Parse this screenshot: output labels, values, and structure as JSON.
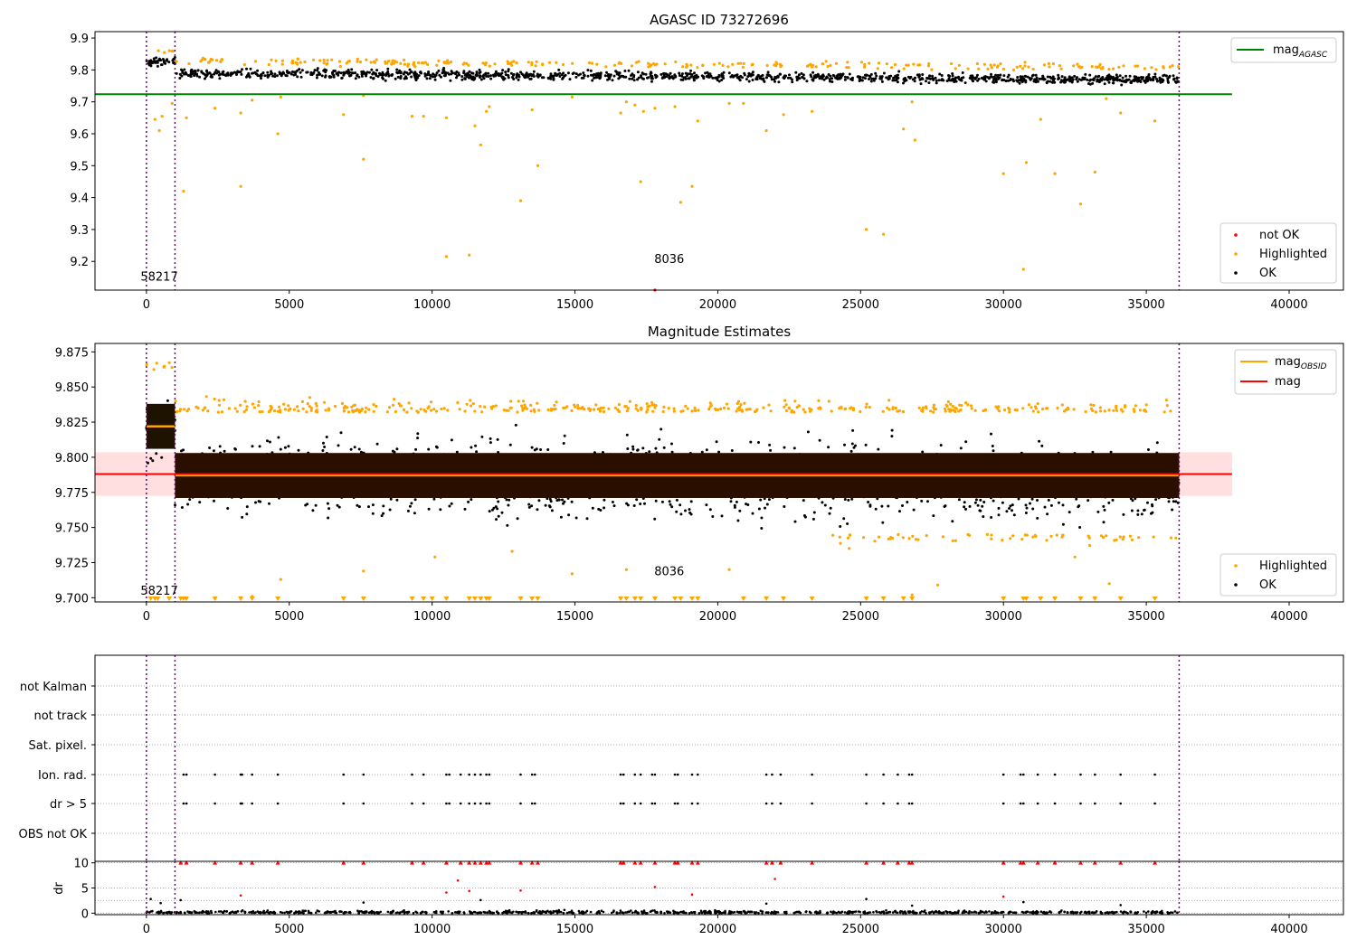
{
  "colors": {
    "ok": "#000000",
    "highlighted": "#ffa500",
    "not_ok": "#ff0000",
    "agasc_line": "#008000",
    "obs_line": "#ffa500",
    "mag_line": "#ff0000",
    "band": "#ffc0c0",
    "boundary": "#800080",
    "grid": "#b0b0b0"
  },
  "chart_data": [
    {
      "type": "scatter",
      "title": "AGASC ID 73272696",
      "xlabel": "",
      "ylabel": "",
      "xlim": [
        -1800,
        41900
      ],
      "ylim": [
        9.11,
        9.92
      ],
      "xticks": [
        0,
        5000,
        10000,
        15000,
        20000,
        25000,
        30000,
        35000,
        40000
      ],
      "xtick_labels": [
        "0",
        "5000",
        "10000",
        "15000",
        "20000",
        "25000",
        "30000",
        "35000",
        "40000"
      ],
      "yticks": [
        9.2,
        9.3,
        9.4,
        9.5,
        9.6,
        9.7,
        9.8,
        9.9
      ],
      "ytick_labels": [
        "9.2",
        "9.3",
        "9.4",
        "9.5",
        "9.6",
        "9.7",
        "9.8",
        "9.9"
      ],
      "lines": [
        {
          "name": "mag",
          "subscript": "AGASC",
          "color": "#008000",
          "y": 9.724,
          "x": [
            -1800,
            38000
          ]
        }
      ],
      "obs_boundaries": [
        0,
        1000,
        36150
      ],
      "obs_labels": [
        {
          "text": "58217",
          "x": 450,
          "y": 9.14
        },
        {
          "text": "8036",
          "x": 18300,
          "y": 9.195
        }
      ],
      "ok_band": {
        "x": [
          0,
          36150
        ],
        "y_center": 9.79,
        "y_halfwidth": 0.025
      },
      "ok_band_early": {
        "x": [
          0,
          1000
        ],
        "y_center": 9.825,
        "y_halfwidth": 0.02
      },
      "highlighted_points": [
        {
          "x": 300,
          "y": 9.645
        },
        {
          "x": 450,
          "y": 9.61
        },
        {
          "x": 550,
          "y": 9.655
        },
        {
          "x": 900,
          "y": 9.695
        },
        {
          "x": 1300,
          "y": 9.42
        },
        {
          "x": 1400,
          "y": 9.65
        },
        {
          "x": 2400,
          "y": 9.68
        },
        {
          "x": 3300,
          "y": 9.435
        },
        {
          "x": 3300,
          "y": 9.665
        },
        {
          "x": 3700,
          "y": 9.705
        },
        {
          "x": 4600,
          "y": 9.6
        },
        {
          "x": 4700,
          "y": 9.715
        },
        {
          "x": 6900,
          "y": 9.66
        },
        {
          "x": 7600,
          "y": 9.52
        },
        {
          "x": 7600,
          "y": 9.72
        },
        {
          "x": 9300,
          "y": 9.655
        },
        {
          "x": 9700,
          "y": 9.655
        },
        {
          "x": 10500,
          "y": 9.215
        },
        {
          "x": 10500,
          "y": 9.65
        },
        {
          "x": 11300,
          "y": 9.22
        },
        {
          "x": 11500,
          "y": 9.625
        },
        {
          "x": 11700,
          "y": 9.565
        },
        {
          "x": 11900,
          "y": 9.67
        },
        {
          "x": 12000,
          "y": 9.685
        },
        {
          "x": 13100,
          "y": 9.39
        },
        {
          "x": 13500,
          "y": 9.675
        },
        {
          "x": 13700,
          "y": 9.5
        },
        {
          "x": 14900,
          "y": 9.715
        },
        {
          "x": 16600,
          "y": 9.665
        },
        {
          "x": 16800,
          "y": 9.7
        },
        {
          "x": 17100,
          "y": 9.69
        },
        {
          "x": 17300,
          "y": 9.45
        },
        {
          "x": 17400,
          "y": 9.67
        },
        {
          "x": 17800,
          "y": 9.68
        },
        {
          "x": 18500,
          "y": 9.685
        },
        {
          "x": 18700,
          "y": 9.385
        },
        {
          "x": 19100,
          "y": 9.435
        },
        {
          "x": 19300,
          "y": 9.64
        },
        {
          "x": 20400,
          "y": 9.695
        },
        {
          "x": 20900,
          "y": 9.695
        },
        {
          "x": 21700,
          "y": 9.61
        },
        {
          "x": 22300,
          "y": 9.66
        },
        {
          "x": 23300,
          "y": 9.67
        },
        {
          "x": 25200,
          "y": 9.3
        },
        {
          "x": 25800,
          "y": 9.285
        },
        {
          "x": 26500,
          "y": 9.615
        },
        {
          "x": 26800,
          "y": 9.7
        },
        {
          "x": 26900,
          "y": 9.58
        },
        {
          "x": 30000,
          "y": 9.475
        },
        {
          "x": 30700,
          "y": 9.175
        },
        {
          "x": 30800,
          "y": 9.51
        },
        {
          "x": 31300,
          "y": 9.645
        },
        {
          "x": 31800,
          "y": 9.475
        },
        {
          "x": 32700,
          "y": 9.38
        },
        {
          "x": 33200,
          "y": 9.48
        },
        {
          "x": 33600,
          "y": 9.71
        },
        {
          "x": 34100,
          "y": 9.665
        },
        {
          "x": 35300,
          "y": 9.64
        }
      ],
      "not_ok_points": [
        {
          "x": 17800,
          "y": 9.11
        }
      ],
      "legend": {
        "upper_right": [
          {
            "label": "mag",
            "subscript": "AGASC",
            "kind": "line",
            "color": "#008000"
          }
        ],
        "lower_right": [
          {
            "label": "not OK",
            "kind": "marker",
            "color": "#ff0000"
          },
          {
            "label": "Highlighted",
            "kind": "marker",
            "color": "#ffa500"
          },
          {
            "label": "OK",
            "kind": "marker",
            "color": "#000000"
          }
        ]
      }
    },
    {
      "type": "scatter",
      "title": "Magnitude Estimates",
      "xlabel": "",
      "ylabel": "",
      "xlim": [
        -1800,
        41900
      ],
      "ylim": [
        9.697,
        9.881
      ],
      "xticks": [
        0,
        5000,
        10000,
        15000,
        20000,
        25000,
        30000,
        35000,
        40000
      ],
      "xtick_labels": [
        "0",
        "5000",
        "10000",
        "15000",
        "20000",
        "25000",
        "30000",
        "35000",
        "40000"
      ],
      "yticks": [
        9.7,
        9.725,
        9.75,
        9.775,
        9.8,
        9.825,
        9.85,
        9.875
      ],
      "ytick_labels": [
        "9.700",
        "9.725",
        "9.750",
        "9.775",
        "9.800",
        "9.825",
        "9.850",
        "9.875"
      ],
      "mag": {
        "value": 9.788,
        "sigma": 0.0155,
        "x": [
          -1800,
          38000
        ]
      },
      "mag_obsid": [
        {
          "x": [
            0,
            1000
          ],
          "y": 9.822
        },
        {
          "x": 1000,
          "x_end": 36150,
          "y": 9.787
        }
      ],
      "obs_boundaries": [
        0,
        1000,
        36150
      ],
      "obs_labels": [
        {
          "text": "58217",
          "x": 450,
          "y": 9.702
        },
        {
          "text": "8036",
          "x": 18300,
          "y": 9.716
        }
      ],
      "ok_band": {
        "x": [
          1000,
          36150
        ],
        "y_center": 9.787,
        "y_halfwidth": 0.016
      },
      "ok_band_early": {
        "x": [
          0,
          1000
        ],
        "y_center": 9.822,
        "y_halfwidth": 0.013
      },
      "clipped_marker_xs": [
        150,
        300,
        400,
        800,
        1200,
        1300,
        1400,
        2400,
        3300,
        3700,
        4600,
        6900,
        7600,
        9300,
        9700,
        10000,
        10500,
        11300,
        11500,
        11700,
        11900,
        12000,
        13100,
        13500,
        13700,
        16600,
        16800,
        17100,
        17300,
        17800,
        18500,
        18700,
        19100,
        19300,
        20900,
        21700,
        22300,
        23300,
        25200,
        25800,
        26500,
        26800,
        30000,
        30700,
        30800,
        31300,
        31800,
        32700,
        33200,
        34100,
        35300
      ],
      "highlighted_points": [
        {
          "x": 4700,
          "y": 9.713
        },
        {
          "x": 7600,
          "y": 9.719
        },
        {
          "x": 10100,
          "y": 9.729
        },
        {
          "x": 12800,
          "y": 9.733
        },
        {
          "x": 14900,
          "y": 9.717
        },
        {
          "x": 16800,
          "y": 9.72
        },
        {
          "x": 20400,
          "y": 9.72
        },
        {
          "x": 24600,
          "y": 9.735
        },
        {
          "x": 26800,
          "y": 9.702
        },
        {
          "x": 27700,
          "y": 9.709
        },
        {
          "x": 32500,
          "y": 9.729
        },
        {
          "x": 33700,
          "y": 9.71
        },
        {
          "x": 3700,
          "y": 9.701
        }
      ],
      "legend": {
        "upper_right": [
          {
            "label": "mag",
            "subscript": "OBSID",
            "kind": "line",
            "color": "#ffa500"
          },
          {
            "label": "mag",
            "kind": "line",
            "color": "#ff0000"
          }
        ],
        "lower_right": [
          {
            "label": "Highlighted",
            "kind": "marker",
            "color": "#ffa500"
          },
          {
            "label": "OK",
            "kind": "marker",
            "color": "#000000"
          }
        ]
      }
    },
    {
      "type": "scatter",
      "title": "",
      "xlabel": "",
      "ylabel": "",
      "xlim": [
        -1800,
        41900
      ],
      "categories": [
        "not Kalman",
        "not track",
        "Sat. pixel.",
        "Ion. rad.",
        "dr > 5",
        "OBS not OK"
      ],
      "obs_boundaries": [
        0,
        1000,
        36150
      ],
      "flag_xs": [
        1300,
        1400,
        2400,
        3300,
        3350,
        3700,
        4600,
        6900,
        7600,
        9300,
        9700,
        10500,
        10600,
        11000,
        11300,
        11500,
        11700,
        11900,
        12000,
        13100,
        13500,
        13600,
        16600,
        16700,
        17100,
        17300,
        17700,
        17800,
        18500,
        18600,
        19100,
        19300,
        21700,
        21900,
        22200,
        23300,
        25200,
        25800,
        26300,
        26700,
        26800,
        30000,
        30600,
        30700,
        31200,
        31800,
        32700,
        33200,
        34100,
        35300
      ],
      "flags": {
        "not Kalman": "none",
        "not track": "none",
        "Sat. pixel.": "none",
        "Ion. rad.": "flag_xs",
        "dr > 5": "flag_xs",
        "OBS not OK": "none"
      }
    },
    {
      "type": "scatter",
      "title": "",
      "xlabel": "",
      "ylabel": "dr",
      "xlim": [
        -1800,
        41900
      ],
      "ylim": [
        -0.3,
        10.3
      ],
      "xticks": [
        0,
        5000,
        10000,
        15000,
        20000,
        25000,
        30000,
        35000,
        40000
      ],
      "xtick_labels": [
        "0",
        "5000",
        "10000",
        "15000",
        "20000",
        "25000",
        "30000",
        "35000",
        "40000"
      ],
      "yticks": [
        0,
        5,
        10
      ],
      "ytick_labels": [
        "0",
        "5",
        "10"
      ],
      "obs_boundaries": [
        0,
        1000,
        36150
      ],
      "red_at_10_xs": [
        1200,
        1400,
        2400,
        3300,
        3700,
        4600,
        6900,
        7600,
        9300,
        9700,
        10500,
        11000,
        11300,
        11500,
        11700,
        11900,
        12000,
        13100,
        13500,
        13700,
        16600,
        16700,
        17100,
        17300,
        17800,
        18500,
        18600,
        19100,
        19300,
        21700,
        21900,
        22200,
        23300,
        25200,
        25800,
        26300,
        26700,
        26800,
        30000,
        30600,
        30700,
        31200,
        31800,
        32700,
        33200,
        34100,
        35300
      ],
      "red_points": [
        {
          "x": 3300,
          "y": 3.5
        },
        {
          "x": 10500,
          "y": 4.1
        },
        {
          "x": 10900,
          "y": 6.5
        },
        {
          "x": 11300,
          "y": 4.4
        },
        {
          "x": 13100,
          "y": 4.5
        },
        {
          "x": 17800,
          "y": 5.2
        },
        {
          "x": 19100,
          "y": 3.7
        },
        {
          "x": 22000,
          "y": 6.8
        },
        {
          "x": 30000,
          "y": 3.3
        }
      ],
      "black_outliers": [
        {
          "x": 150,
          "y": 2.8
        },
        {
          "x": 500,
          "y": 2.0
        },
        {
          "x": 1200,
          "y": 2.6
        },
        {
          "x": 7600,
          "y": 2.1
        },
        {
          "x": 11700,
          "y": 2.6
        },
        {
          "x": 21700,
          "y": 1.9
        },
        {
          "x": 25200,
          "y": 2.8
        },
        {
          "x": 26800,
          "y": 1.5
        },
        {
          "x": 30700,
          "y": 2.2
        },
        {
          "x": 34100,
          "y": 1.6
        }
      ]
    }
  ]
}
